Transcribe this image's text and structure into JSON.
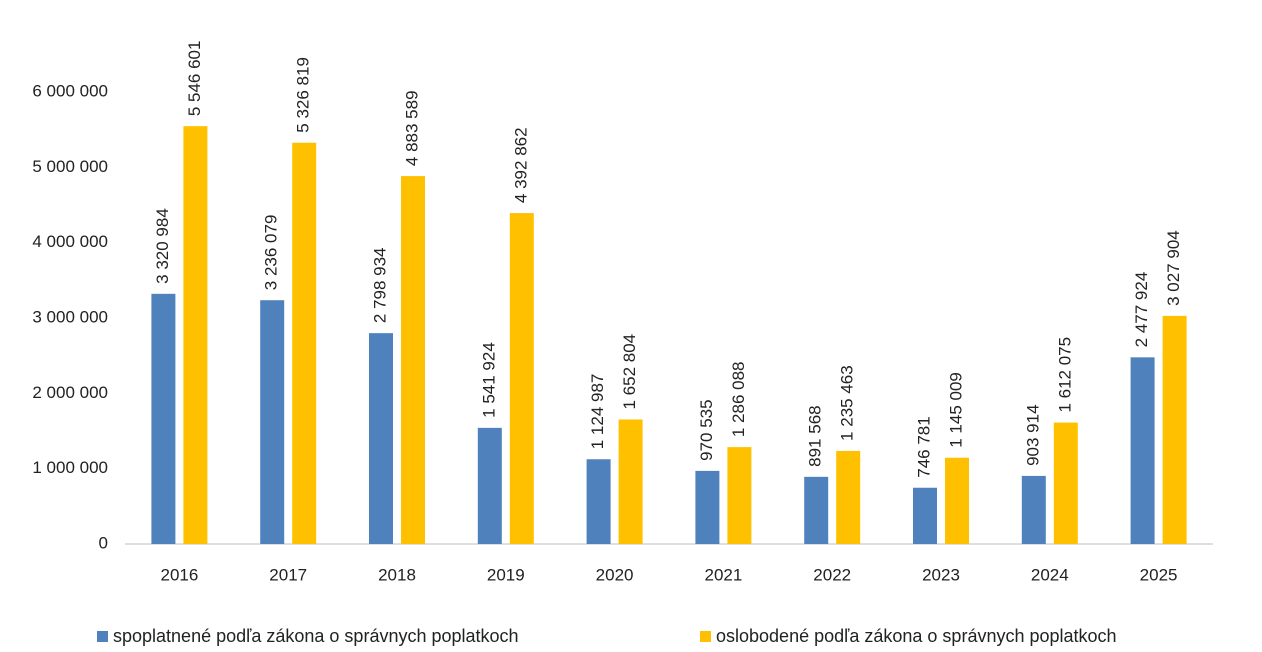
{
  "chart_data": {
    "type": "bar",
    "categories": [
      "2016",
      "2017",
      "2018",
      "2019",
      "2020",
      "2021",
      "2022",
      "2023",
      "2024",
      "2025"
    ],
    "series": [
      {
        "name": "spoplatnené podľa zákona o správnych poplatkoch",
        "color": "#4f81bd",
        "values": [
          3320984,
          3236079,
          2798934,
          1541924,
          1124987,
          970535,
          891568,
          746781,
          903914,
          2477924
        ],
        "value_labels": [
          "3 320 984",
          "3 236 079",
          "2 798 934",
          "1 541 924",
          "1 124 987",
          "970 535",
          "891 568",
          "746 781",
          "903 914",
          "2 477 924"
        ]
      },
      {
        "name": "oslobodené podľa zákona o správnych poplatkoch",
        "color": "#ffc000",
        "values": [
          5546601,
          5326819,
          4883589,
          4392862,
          1652804,
          1286088,
          1235463,
          1145009,
          1612075,
          3027904
        ],
        "value_labels": [
          "5 546 601",
          "5 326 819",
          "4 883 589",
          "4 392 862",
          "1 652 804",
          "1 286 088",
          "1 235 463",
          "1 145 009",
          "1 612 075",
          "3 027 904"
        ]
      }
    ],
    "ylim": [
      0,
      6000000
    ],
    "yticks": [
      0,
      {
        "value": 1000000,
        "label": "1 000 000"
      },
      {
        "value": 2000000,
        "label": "2 000 000"
      },
      {
        "value": 3000000,
        "label": "3 000 000"
      },
      {
        "value": 4000000,
        "label": "4 000 000"
      },
      {
        "value": 5000000,
        "label": "5 000 000"
      },
      {
        "value": 6000000,
        "label": "6 000 000"
      }
    ],
    "grid": false,
    "legend": "bottom"
  }
}
